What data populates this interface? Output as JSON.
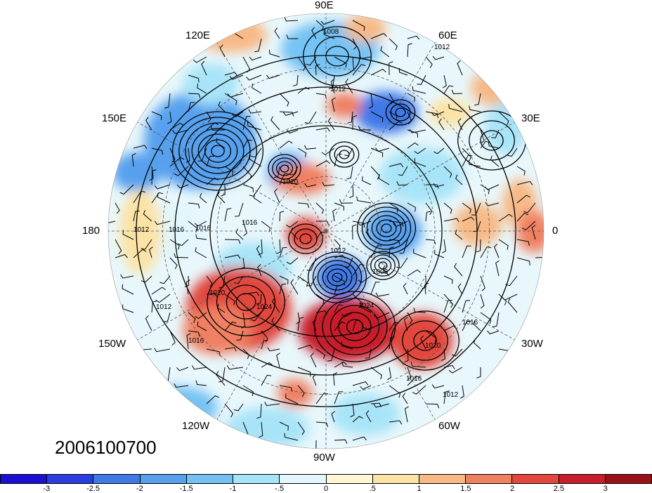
{
  "map": {
    "projection": "polar-stereographic-north",
    "longitude_labels": [
      {
        "text": "90E",
        "id": "lon-90e"
      },
      {
        "text": "60E",
        "id": "lon-60e"
      },
      {
        "text": "30E",
        "id": "lon-30e"
      },
      {
        "text": "0",
        "id": "lon-0"
      },
      {
        "text": "30W",
        "id": "lon-30w"
      },
      {
        "text": "60W",
        "id": "lon-60w"
      },
      {
        "text": "90W",
        "id": "lon-90w"
      },
      {
        "text": "120W",
        "id": "lon-120w"
      },
      {
        "text": "150W",
        "id": "lon-150w"
      },
      {
        "text": "180",
        "id": "lon-180"
      },
      {
        "text": "150E",
        "id": "lon-150e"
      },
      {
        "text": "120E",
        "id": "lon-120e"
      }
    ],
    "contour_labels": [
      "1008",
      "1012",
      "1012",
      "1020",
      "1016",
      "1016",
      "1012",
      "1020",
      "1024",
      "1012",
      "1016",
      "1024",
      "1016",
      "1020",
      "1016",
      "1012",
      "1008",
      "1012",
      "1016"
    ],
    "anomaly_features": [
      {
        "sign": "negative",
        "value": -3,
        "region": "NE Siberia / Okhotsk"
      },
      {
        "sign": "positive",
        "value": 2.5,
        "region": "Eastern North America"
      },
      {
        "sign": "positive",
        "value": 2,
        "region": "Gulf of Alaska / NE Pacific"
      },
      {
        "sign": "positive",
        "value": 2,
        "region": "Central North Atlantic"
      },
      {
        "sign": "negative",
        "value": -2.5,
        "region": "Western Russia"
      }
    ]
  },
  "date_label": "2006100700",
  "colorbar": {
    "colors": [
      "#1a0fd0",
      "#2a3ee0",
      "#3f78e8",
      "#56a0ee",
      "#74c2f4",
      "#a8e4f8",
      "#e2f6fb",
      "#fdf7d6",
      "#fbe3a6",
      "#f7b986",
      "#f08062",
      "#e2463c",
      "#c81e2a",
      "#9a1018"
    ],
    "tick_labels": [
      "-3",
      "-2.5",
      "-2",
      "-1.5",
      "-1",
      "-.5",
      "0",
      ".5",
      "1",
      "1.5",
      "2",
      "2.5",
      "3"
    ]
  }
}
